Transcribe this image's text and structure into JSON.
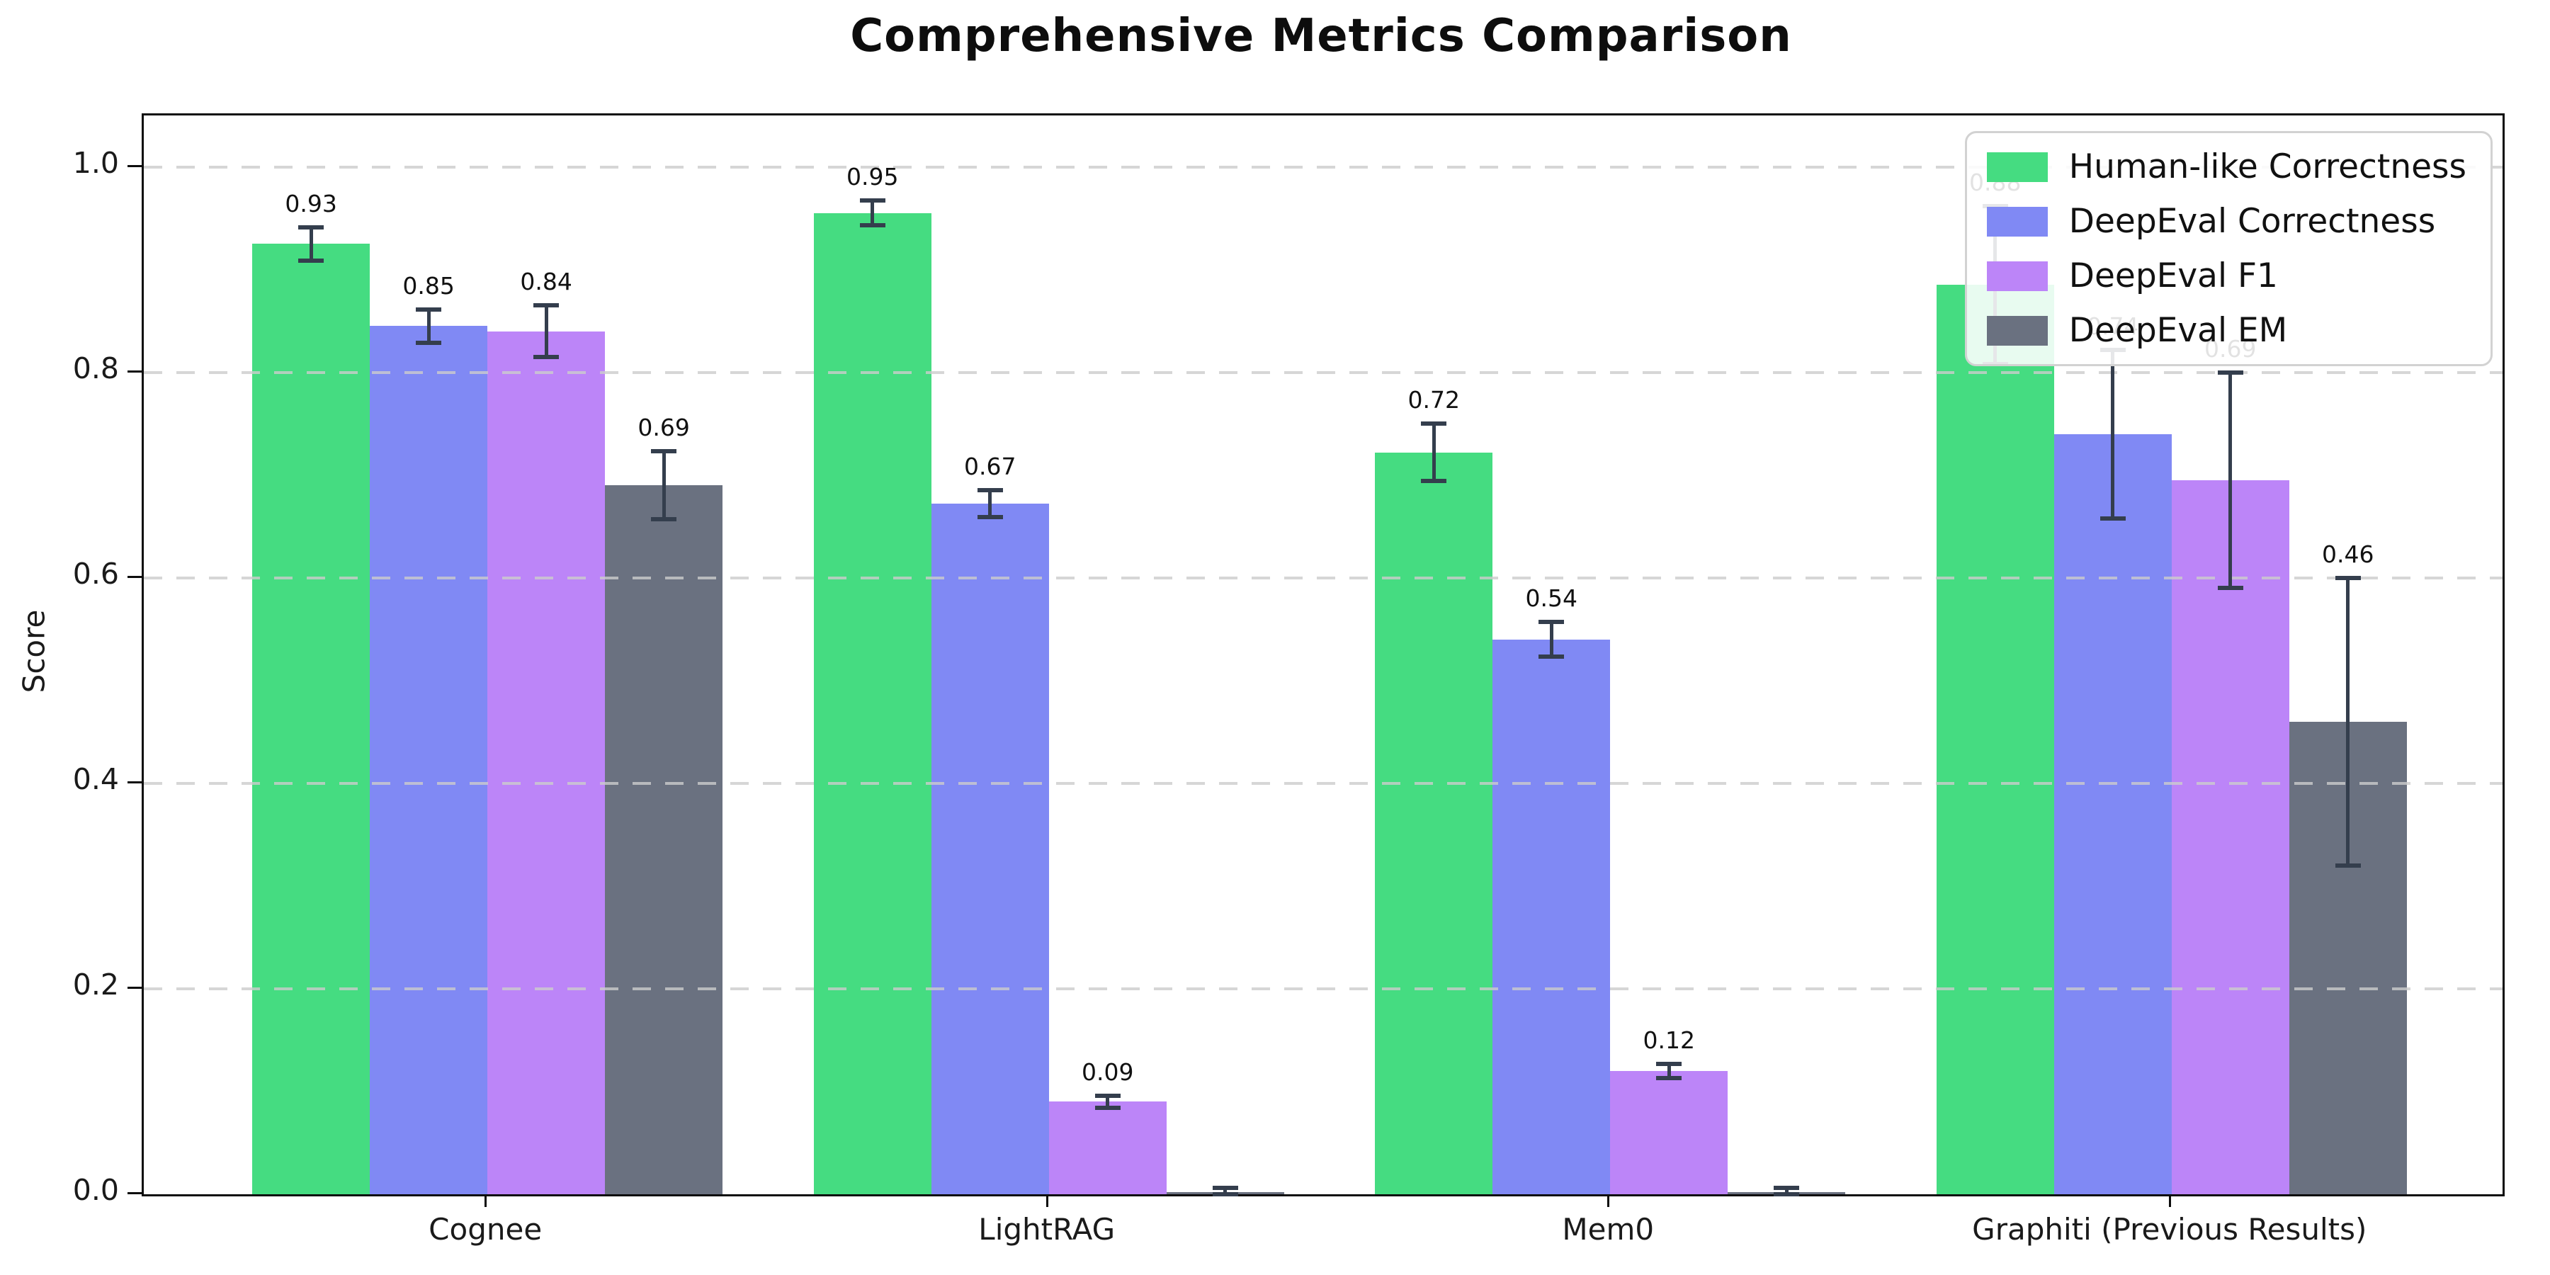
{
  "chart_data": {
    "type": "bar",
    "title": "Comprehensive Metrics Comparison",
    "xlabel": "",
    "ylabel": "Score",
    "categories": [
      "Cognee",
      "LightRAG",
      "Mem0",
      "Graphiti (Previous Results)"
    ],
    "series": [
      {
        "name": "Human-like Correctness",
        "color": "#45dc81",
        "values": [
          0.925,
          0.955,
          0.722,
          0.885
        ],
        "labels": [
          "0.93",
          "0.95",
          "0.72",
          "0.88"
        ],
        "errors": [
          0.016,
          0.012,
          0.028,
          0.077
        ]
      },
      {
        "name": "DeepEval Correctness",
        "color": "#8089f4",
        "values": [
          0.845,
          0.672,
          0.54,
          0.74
        ],
        "labels": [
          "0.85",
          "0.67",
          "0.54",
          "0.74"
        ],
        "errors": [
          0.016,
          0.013,
          0.017,
          0.082
        ]
      },
      {
        "name": "DeepEval F1",
        "color": "#bc85f8",
        "values": [
          0.84,
          0.09,
          0.12,
          0.695
        ],
        "labels": [
          "0.84",
          "0.09",
          "0.12",
          "0.69"
        ],
        "errors": [
          0.025,
          0.006,
          0.007,
          0.105
        ]
      },
      {
        "name": "DeepEval EM",
        "color": "#6a7180",
        "values": [
          0.69,
          0.002,
          0.002,
          0.46
        ],
        "labels": [
          "0.69",
          null,
          null,
          "0.46"
        ],
        "errors": [
          0.033,
          0.004,
          0.004,
          0.14
        ]
      }
    ],
    "yticks": [
      "0.0",
      "0.2",
      "0.4",
      "0.6",
      "0.8",
      "1.0"
    ],
    "ylim": [
      0,
      1.05
    ],
    "grid": "horizontal dashed",
    "legend_position": "upper right",
    "error_bar_color": "#343e4d",
    "background_color": "#ffffff"
  }
}
